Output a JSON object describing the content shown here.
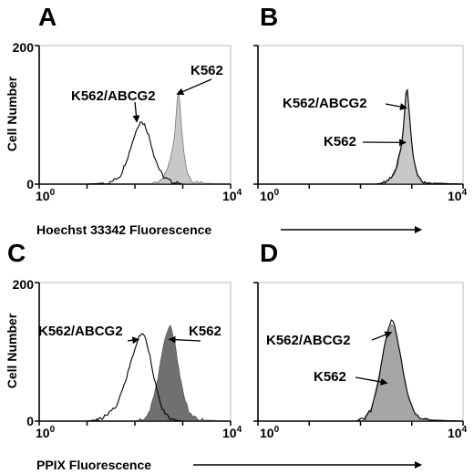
{
  "figure": {
    "panels": [
      {
        "letter": "A",
        "ylabel": "Cell Number",
        "y_max_tick": "200",
        "y_min_tick": "0",
        "x_min_tick_base": "10",
        "x_min_tick_exp": "0",
        "x_max_tick_base": "10",
        "x_max_tick_exp": "4"
      },
      {
        "letter": "B",
        "x_min_tick_base": "10",
        "x_min_tick_exp": "0",
        "x_max_tick_base": "10",
        "x_max_tick_exp": "4"
      },
      {
        "letter": "C",
        "ylabel": "Cell Number",
        "y_max_tick": "200",
        "y_min_tick": "0",
        "x_min_tick_base": "10",
        "x_min_tick_exp": "0",
        "x_max_tick_base": "10",
        "x_max_tick_exp": "4"
      },
      {
        "letter": "D",
        "x_min_tick_base": "10",
        "x_min_tick_exp": "0",
        "x_max_tick_base": "10",
        "x_max_tick_exp": "4"
      }
    ],
    "row_labels": [
      "Hoechst 33342 Fluorescence",
      "PPIX Fluorescence"
    ]
  },
  "chart_data": [
    {
      "type": "area",
      "panel": "A",
      "xscale": "log",
      "xlim": [
        1,
        10000
      ],
      "ylim": [
        0,
        200
      ],
      "xlabel": "Hoechst 33342 Fluorescence",
      "ylabel": "Cell Number",
      "series": [
        {
          "name": "K562/ABCG2",
          "fill": "none",
          "color": "#000000",
          "x": [
            1,
            10,
            30,
            50,
            70,
            90,
            110,
            130,
            160,
            200,
            250,
            320,
            400,
            600,
            1000
          ],
          "values": [
            0,
            0,
            2,
            12,
            38,
            62,
            80,
            91,
            86,
            68,
            42,
            22,
            10,
            3,
            0
          ]
        },
        {
          "name": "K562",
          "fill": "#c8c8c8",
          "color": "#777777",
          "x": [
            1,
            200,
            300,
            400,
            500,
            600,
            650,
            700,
            750,
            800,
            850,
            900,
            1000,
            1100,
            1300,
            1600,
            10000
          ],
          "values": [
            0,
            0,
            3,
            10,
            25,
            48,
            62,
            82,
            115,
            142,
            125,
            100,
            60,
            35,
            12,
            2,
            0
          ]
        }
      ],
      "annotations": [
        {
          "text": "K562/ABCG2",
          "target": "K562/ABCG2"
        },
        {
          "text": "K562",
          "target": "K562"
        }
      ]
    },
    {
      "type": "area",
      "panel": "B",
      "xscale": "log",
      "xlim": [
        1,
        10000
      ],
      "ylim": [
        0,
        200
      ],
      "xlabel": "Hoechst 33342 Fluorescence",
      "series": [
        {
          "name": "K562",
          "fill": "#c8c8c8",
          "color": "#777777",
          "x": [
            1,
            200,
            300,
            400,
            500,
            600,
            650,
            700,
            750,
            800,
            850,
            900,
            1000,
            1100,
            1300,
            1600,
            10000
          ],
          "values": [
            0,
            0,
            3,
            10,
            26,
            50,
            66,
            88,
            118,
            143,
            122,
            96,
            58,
            32,
            11,
            2,
            0
          ]
        },
        {
          "name": "K562/ABCG2",
          "fill": "none",
          "color": "#000000",
          "x": [
            1,
            200,
            300,
            400,
            500,
            600,
            650,
            700,
            750,
            800,
            850,
            900,
            1000,
            1100,
            1300,
            1600,
            10000
          ],
          "values": [
            0,
            0,
            2,
            9,
            24,
            48,
            64,
            86,
            120,
            148,
            125,
            98,
            60,
            34,
            12,
            2,
            0
          ]
        }
      ],
      "annotations": [
        {
          "text": "K562/ABCG2",
          "target": "K562/ABCG2"
        },
        {
          "text": "K562",
          "target": "K562"
        }
      ]
    },
    {
      "type": "area",
      "panel": "C",
      "xscale": "log",
      "xlim": [
        1,
        10000
      ],
      "ylim": [
        0,
        200
      ],
      "xlabel": "PPIX Fluorescence",
      "ylabel": "Cell Number",
      "series": [
        {
          "name": "K562/ABCG2",
          "fill": "none",
          "color": "#000000",
          "x": [
            1,
            10,
            20,
            40,
            60,
            80,
            100,
            120,
            140,
            170,
            210,
            260,
            330,
            420,
            600,
            1000
          ],
          "values": [
            0,
            0,
            3,
            20,
            52,
            82,
            105,
            120,
            128,
            118,
            92,
            58,
            28,
            10,
            2,
            0
          ]
        },
        {
          "name": "K562",
          "fill": "#707070",
          "color": "#555555",
          "x": [
            1,
            100,
            150,
            200,
            260,
            320,
            380,
            430,
            480,
            540,
            600,
            700,
            850,
            1050,
            1400,
            2000,
            10000
          ],
          "values": [
            0,
            0,
            3,
            14,
            40,
            72,
            100,
            118,
            132,
            140,
            130,
            108,
            70,
            36,
            12,
            2,
            0
          ]
        }
      ],
      "annotations": [
        {
          "text": "K562/ABCG2",
          "target": "K562/ABCG2"
        },
        {
          "text": "K562",
          "target": "K562"
        }
      ]
    },
    {
      "type": "area",
      "panel": "D",
      "xscale": "log",
      "xlim": [
        1,
        10000
      ],
      "ylim": [
        0,
        200
      ],
      "xlabel": "PPIX Fluorescence",
      "series": [
        {
          "name": "K562",
          "fill": "#a6a6a6",
          "color": "#888888",
          "x": [
            1,
            80,
            120,
            160,
            200,
            250,
            300,
            350,
            400,
            450,
            500,
            600,
            700,
            850,
            1100,
            1500,
            10000
          ],
          "values": [
            0,
            0,
            4,
            18,
            45,
            80,
            110,
            130,
            140,
            136,
            124,
            96,
            66,
            36,
            12,
            2,
            0
          ]
        },
        {
          "name": "K562/ABCG2",
          "fill": "none",
          "color": "#000000",
          "x": [
            1,
            80,
            120,
            160,
            200,
            250,
            300,
            350,
            400,
            450,
            500,
            600,
            700,
            850,
            1100,
            1500,
            10000
          ],
          "values": [
            0,
            0,
            3,
            16,
            42,
            78,
            112,
            134,
            146,
            140,
            126,
            98,
            68,
            38,
            13,
            2,
            0
          ]
        }
      ],
      "annotations": [
        {
          "text": "K562/ABCG2",
          "target": "K562/ABCG2"
        },
        {
          "text": "K562",
          "target": "K562"
        }
      ]
    }
  ]
}
